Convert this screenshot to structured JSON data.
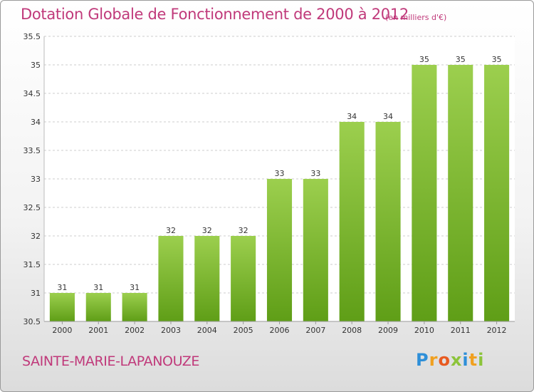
{
  "header": {
    "title": "Dotation Globale de Fonctionnement de 2000 à 2012",
    "unit_note": "(en milliers d'€)"
  },
  "footer": {
    "commune": "SAINTE-MARIE-LAPANOUZE",
    "brand_letters": [
      {
        "ch": "P",
        "color": "#2e8fd8"
      },
      {
        "ch": "r",
        "color": "#f0a020"
      },
      {
        "ch": "o",
        "color": "#e85a20"
      },
      {
        "ch": "x",
        "color": "#8cc43a"
      },
      {
        "ch": "i",
        "color": "#2e8fd8"
      },
      {
        "ch": "t",
        "color": "#f0a020"
      },
      {
        "ch": "i",
        "color": "#8cc43a"
      }
    ]
  },
  "colors": {
    "title": "#c0397a",
    "bar_top": "#9ccf4e",
    "bar_bottom": "#5f9e17",
    "grid": "#cccccc",
    "axis_text": "#333333"
  },
  "chart_data": {
    "type": "bar",
    "title": "Dotation Globale de Fonctionnement de 2000 à 2012",
    "subtitle": "(en milliers d'€)",
    "categories": [
      "2000",
      "2001",
      "2002",
      "2003",
      "2004",
      "2005",
      "2006",
      "2007",
      "2008",
      "2009",
      "2010",
      "2011",
      "2012"
    ],
    "values": [
      31,
      31,
      31,
      32,
      32,
      32,
      33,
      33,
      34,
      34,
      35,
      35,
      35
    ],
    "data_labels": [
      "31",
      "31",
      "31",
      "32",
      "32",
      "32",
      "33",
      "33",
      "34",
      "34",
      "35",
      "35",
      "35"
    ],
    "ylim": [
      30.5,
      35.5
    ],
    "yticks": [
      "30.5",
      "31",
      "31.5",
      "32",
      "32.5",
      "33",
      "33.5",
      "34",
      "34.5",
      "35",
      "35.5"
    ],
    "grid": true,
    "xlabel": "",
    "ylabel": ""
  }
}
